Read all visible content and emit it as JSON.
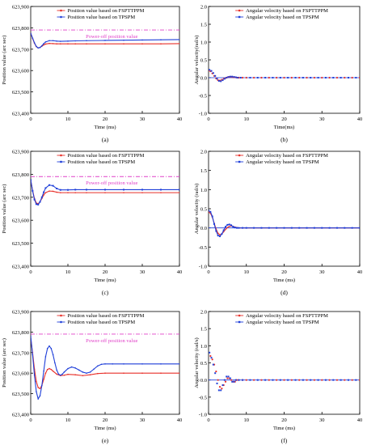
{
  "colors": {
    "red": "#e8302a",
    "blue": "#1f3fd9",
    "magenta": "#e040c8",
    "axis": "#000000"
  },
  "chart_data": [
    {
      "id": "a",
      "caption": "(a)",
      "type": "line",
      "title": "",
      "xlabel": "Time (ms)",
      "ylabel": "Position value (arc sec)",
      "xlim": [
        0,
        40
      ],
      "ylim": [
        623400,
        623900
      ],
      "xticks": [
        "0",
        "10",
        "20",
        "30",
        "40"
      ],
      "yticks": [
        "623,400",
        "623,500",
        "623,600",
        "623,700",
        "623,800",
        "623,900"
      ],
      "legend_placement": "top-center",
      "hline": {
        "y": 623790,
        "label": "Power-off position value",
        "color": "#e040c8"
      },
      "series": [
        {
          "name": "Position value based on FSPTTPPM",
          "color": "#e8302a",
          "marker": "dot",
          "x": [
            0,
            0.5,
            1,
            1.5,
            2,
            2.5,
            3,
            3.5,
            4,
            5,
            6,
            7,
            8,
            10,
            12,
            15,
            20,
            25,
            30,
            35,
            40
          ],
          "y": [
            623775,
            623750,
            623728,
            623712,
            623706,
            623708,
            623714,
            623720,
            623724,
            623727,
            623726,
            623725,
            623725,
            623725,
            623725,
            623725,
            623725,
            623725,
            623725,
            623725,
            623726
          ]
        },
        {
          "name": "Position value based on TPSPM",
          "color": "#1f3fd9",
          "marker": "dot",
          "x": [
            0,
            0.5,
            1,
            1.5,
            2,
            2.5,
            3,
            3.5,
            4,
            5,
            6,
            7,
            8,
            10,
            12,
            15,
            20,
            25,
            30,
            35,
            40
          ],
          "y": [
            623775,
            623752,
            623730,
            623713,
            623706,
            623708,
            623716,
            623726,
            623734,
            623740,
            623740,
            623738,
            623737,
            623738,
            623739,
            623740,
            623741,
            623742,
            623743,
            623744,
            623745
          ]
        }
      ]
    },
    {
      "id": "b",
      "caption": "(b)",
      "type": "scatter",
      "title": "",
      "xlabel": "Time(ms)",
      "ylabel": "Angular velocity(rad/s)",
      "xlim": [
        0,
        40
      ],
      "ylim": [
        -1.0,
        2.0
      ],
      "xticks": [
        "0",
        "10",
        "20",
        "30",
        "40"
      ],
      "yticks": [
        "-1.0",
        "-0.5",
        "0.0",
        "0.5",
        "1.0",
        "1.5",
        "2.0"
      ],
      "legend_placement": "top-center",
      "series": [
        {
          "name": "Angular velocity based on FSPTTPPM",
          "color": "#e8302a",
          "marker": "dot",
          "x": [
            0,
            0.5,
            1,
            1.5,
            2,
            2.5,
            3,
            3.5,
            4,
            4.5,
            5,
            5.5,
            6,
            6.5,
            7,
            7.5,
            8,
            9,
            10,
            12,
            14,
            16,
            18,
            20,
            22,
            24,
            26,
            28,
            30,
            32,
            34,
            36,
            38,
            40
          ],
          "y": [
            0.2,
            0.18,
            0.12,
            0.05,
            -0.02,
            -0.07,
            -0.08,
            -0.06,
            -0.03,
            -0.01,
            0.01,
            0.02,
            0.02,
            0.01,
            0.01,
            0.0,
            0.0,
            0.0,
            0.0,
            0.0,
            0.0,
            0.0,
            0.0,
            0.0,
            0.0,
            0.0,
            0.0,
            0.0,
            0.0,
            0.0,
            0.0,
            0.0,
            0.0,
            0.0
          ]
        },
        {
          "name": "Angular velocity based on TPSPM",
          "color": "#1f3fd9",
          "marker": "square",
          "x": [
            0.25,
            0.75,
            1.25,
            1.75,
            2.25,
            2.75,
            3.25,
            3.75,
            4.25,
            4.75,
            5.25,
            5.75,
            6.25,
            6.75,
            7.25,
            7.75,
            8.5,
            11,
            13,
            15,
            17,
            19,
            21,
            23,
            25,
            27,
            29,
            31,
            33,
            35,
            37,
            39
          ],
          "y": [
            0.22,
            0.19,
            0.13,
            0.05,
            -0.03,
            -0.09,
            -0.1,
            -0.07,
            -0.03,
            0.0,
            0.02,
            0.03,
            0.03,
            0.02,
            0.01,
            0.0,
            0.0,
            0.0,
            0.0,
            0.0,
            0.0,
            0.0,
            0.0,
            0.0,
            0.0,
            0.0,
            0.0,
            0.0,
            0.0,
            0.0,
            0.0,
            0.0
          ]
        }
      ]
    },
    {
      "id": "c",
      "caption": "(c)",
      "type": "line",
      "title": "",
      "xlabel": "Time (ms)",
      "ylabel": "Position value (arc sec)",
      "xlim": [
        0,
        40
      ],
      "ylim": [
        623400,
        623900
      ],
      "xticks": [
        "0",
        "10",
        "20",
        "30",
        "40"
      ],
      "yticks": [
        "623,400",
        "623,500",
        "623,600",
        "623,700",
        "623,800",
        "623,900"
      ],
      "legend_placement": "top-center",
      "hline": {
        "y": 623790,
        "label": "Power-off position value",
        "color": "#e040c8"
      },
      "series": [
        {
          "name": "Position value based on FSPTTPPM",
          "color": "#e8302a",
          "marker": "dot",
          "x": [
            0,
            0.5,
            1,
            1.5,
            2,
            2.5,
            3,
            3.5,
            4,
            5,
            6,
            7,
            8,
            10,
            12,
            15,
            20,
            25,
            30,
            35,
            40
          ],
          "y": [
            623775,
            623730,
            623695,
            623675,
            623672,
            623680,
            623695,
            623710,
            623720,
            623727,
            623726,
            623722,
            623720,
            623720,
            623720,
            623720,
            623720,
            623720,
            623720,
            623720,
            623720
          ]
        },
        {
          "name": "Position value based on TPSPM",
          "color": "#1f3fd9",
          "marker": "square",
          "x": [
            0,
            0.5,
            1,
            1.5,
            2,
            2.5,
            3,
            3.5,
            4,
            5,
            6,
            7,
            8,
            10,
            12,
            15,
            20,
            25,
            30,
            35,
            40
          ],
          "y": [
            623775,
            623728,
            623690,
            623670,
            623668,
            623680,
            623700,
            623722,
            623740,
            623753,
            623750,
            623738,
            623732,
            623732,
            623733,
            623733,
            623733,
            623733,
            623733,
            623733,
            623733
          ]
        }
      ]
    },
    {
      "id": "d",
      "caption": "(d)",
      "type": "line",
      "title": "",
      "xlabel": "Time (ms)",
      "ylabel": "Angular velocity (rad/s)",
      "xlim": [
        0,
        40
      ],
      "ylim": [
        -1.0,
        2.0
      ],
      "xticks": [
        "0",
        "10",
        "20",
        "30",
        "40"
      ],
      "yticks": [
        "-1.0",
        "-0.5",
        "0.0",
        "0.5",
        "1.0",
        "1.5",
        "2.0"
      ],
      "legend_placement": "top-center",
      "series": [
        {
          "name": "Angular velocity  based on FSPTTPPM",
          "color": "#e8302a",
          "marker": "dot",
          "x": [
            0,
            0.5,
            1,
            1.5,
            2,
            2.5,
            3,
            3.5,
            4,
            4.5,
            5,
            5.5,
            6,
            6.5,
            7,
            7.5,
            8,
            9,
            10,
            12,
            14,
            16,
            18,
            20,
            22,
            24,
            26,
            28,
            30,
            32,
            34,
            36,
            38,
            40
          ],
          "y": [
            0.42,
            0.38,
            0.28,
            0.12,
            -0.03,
            -0.14,
            -0.18,
            -0.16,
            -0.1,
            -0.04,
            0.01,
            0.04,
            0.05,
            0.04,
            0.02,
            0.01,
            0.0,
            0.0,
            0.0,
            0.0,
            0.0,
            0.0,
            0.0,
            0.0,
            0.0,
            0.0,
            0.0,
            0.0,
            0.0,
            0.0,
            0.0,
            0.0,
            0.0,
            0.0
          ]
        },
        {
          "name": "Angular velocity  based on TPSPM",
          "color": "#1f3fd9",
          "marker": "square",
          "x": [
            0,
            0.5,
            1,
            1.5,
            2,
            2.5,
            3,
            3.5,
            4,
            4.5,
            5,
            5.5,
            6,
            6.5,
            7,
            7.5,
            8,
            9,
            10,
            12,
            14,
            16,
            18,
            20,
            22,
            24,
            26,
            28,
            30,
            32,
            34,
            36,
            38,
            40
          ],
          "y": [
            0.45,
            0.42,
            0.3,
            0.1,
            -0.08,
            -0.2,
            -0.22,
            -0.16,
            -0.06,
            0.03,
            0.08,
            0.09,
            0.07,
            0.03,
            0.01,
            0.0,
            0.0,
            0.0,
            0.0,
            0.0,
            0.0,
            0.0,
            0.0,
            0.0,
            0.0,
            0.0,
            0.0,
            0.0,
            0.0,
            0.0,
            0.0,
            0.0,
            0.0,
            0.0
          ]
        }
      ]
    },
    {
      "id": "e",
      "caption": "(e)",
      "type": "line",
      "title": "",
      "xlabel": "Time (ms)",
      "ylabel": "Position value (arc sec)",
      "xlim": [
        0,
        40
      ],
      "ylim": [
        623400,
        623900
      ],
      "xticks": [
        "0",
        "10",
        "20",
        "30",
        "40"
      ],
      "yticks": [
        "623,400",
        "623,500",
        "623,600",
        "623,700",
        "623,800",
        "623,900"
      ],
      "legend_placement": "top-center",
      "hline": {
        "y": 623790,
        "label": "Power-off position value",
        "color": "#e040c8"
      },
      "series": [
        {
          "name": "Position value based on FSPTTPPM",
          "color": "#e8302a",
          "marker": "dot",
          "x": [
            0,
            0.5,
            1,
            1.5,
            2,
            2.5,
            3,
            3.5,
            4,
            4.5,
            5,
            5.5,
            6,
            7,
            8,
            9,
            10,
            12,
            14,
            16,
            18,
            20,
            25,
            30,
            35,
            40
          ],
          "y": [
            623770,
            623700,
            623620,
            623560,
            623530,
            623525,
            623540,
            623570,
            623600,
            623618,
            623622,
            623618,
            623610,
            623595,
            623588,
            623590,
            623594,
            623592,
            623588,
            623592,
            623598,
            623600,
            623600,
            623600,
            623600,
            623600
          ]
        },
        {
          "name": "Position value based on TPSPM",
          "color": "#1f3fd9",
          "marker": "dot",
          "x": [
            0,
            0.5,
            1,
            1.5,
            2,
            2.5,
            3,
            3.5,
            4,
            4.5,
            5,
            5.5,
            6,
            6.5,
            7,
            7.5,
            8,
            8.5,
            9,
            10,
            11,
            12,
            13,
            14,
            15,
            16,
            17,
            18,
            19,
            20,
            22,
            25,
            30,
            35,
            40
          ],
          "y": [
            623780,
            623690,
            623590,
            623510,
            623475,
            623490,
            623540,
            623610,
            623680,
            623720,
            623732,
            623720,
            623690,
            623650,
            623615,
            623595,
            623590,
            623595,
            623605,
            623622,
            623630,
            623625,
            623615,
            623605,
            623600,
            623605,
            623620,
            623635,
            623643,
            623645,
            623645,
            623645,
            623645,
            623645,
            623645
          ]
        }
      ]
    },
    {
      "id": "f",
      "caption": "(f)",
      "type": "scatter",
      "title": "",
      "xlabel": "Time (ms)",
      "ylabel": "Angular velocity (rad/s)",
      "xlim": [
        0,
        40
      ],
      "ylim": [
        -1.0,
        2.0
      ],
      "xticks": [
        "0",
        "10",
        "20",
        "30",
        "40"
      ],
      "yticks": [
        "-1.0",
        "-0.5",
        "0.0",
        "0.5",
        "1.0",
        "1.5",
        "2.0"
      ],
      "legend_placement": "top-center",
      "series": [
        {
          "name": "Angular velocity  based on FSPTTPPM",
          "color": "#e8302a",
          "marker": "dot",
          "x": [
            0.5,
            1,
            1.5,
            2,
            2.5,
            3,
            3.5,
            4,
            4.5,
            5,
            5.5,
            6,
            6.5,
            7,
            7.5,
            8,
            9,
            10,
            12,
            14,
            16,
            18,
            20,
            22,
            24,
            26,
            28,
            30,
            32,
            34,
            36,
            38,
            40
          ],
          "y": [
            0.7,
            0.6,
            0.45,
            0.25,
            0.0,
            -0.2,
            -0.25,
            -0.15,
            -0.05,
            0.05,
            0.05,
            0.0,
            -0.05,
            -0.05,
            0.0,
            0.0,
            0.0,
            0.0,
            0.0,
            0.0,
            0.0,
            0.0,
            0.0,
            0.0,
            0.0,
            0.0,
            0.0,
            0.0,
            0.0,
            0.0,
            0.0,
            0.0,
            0.0
          ]
        },
        {
          "name": "Angular velocity  based on TPSPM",
          "color": "#1f3fd9",
          "marker": "square",
          "x": [
            0.25,
            0.75,
            1.25,
            1.75,
            2.25,
            2.75,
            3.25,
            3.75,
            4.25,
            4.75,
            5.25,
            5.75,
            6.25,
            6.75,
            7.25,
            8,
            9,
            11,
            13,
            15,
            17,
            19,
            21,
            23,
            25,
            27,
            29,
            31,
            33,
            35,
            37,
            39
          ],
          "y": [
            0.8,
            0.65,
            0.45,
            0.2,
            -0.1,
            -0.3,
            -0.3,
            -0.15,
            0.0,
            0.1,
            0.1,
            0.05,
            -0.05,
            -0.05,
            0.0,
            0.0,
            0.0,
            0.0,
            0.0,
            0.0,
            0.0,
            0.0,
            0.0,
            0.0,
            0.0,
            0.0,
            0.0,
            0.0,
            0.0,
            0.0,
            0.0,
            0.0
          ]
        }
      ]
    }
  ]
}
